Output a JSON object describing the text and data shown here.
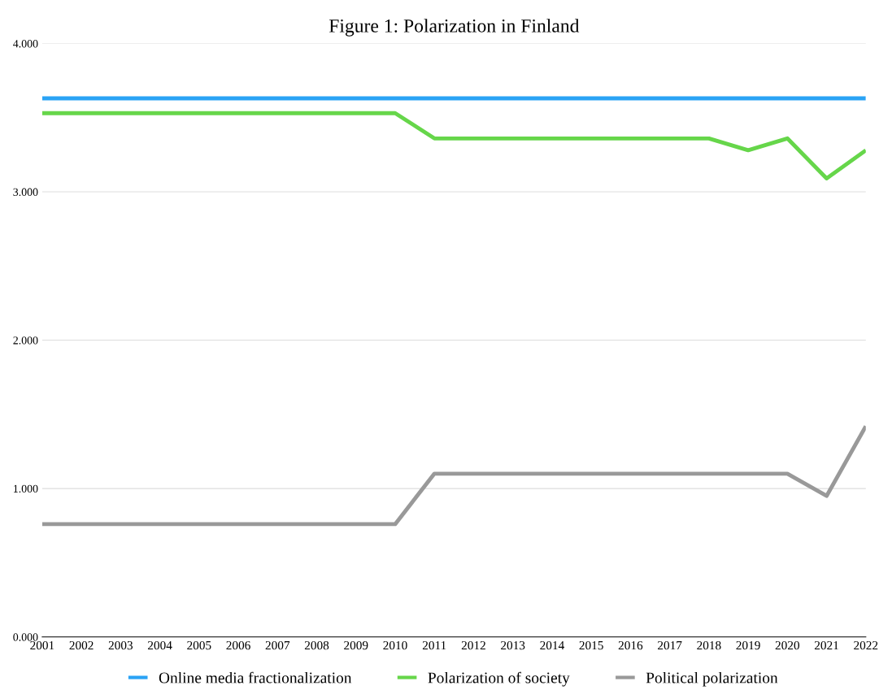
{
  "chart_data": {
    "type": "line",
    "title": "Figure 1: Polarization in Finland",
    "categories": [
      "2001",
      "2002",
      "2003",
      "2004",
      "2005",
      "2006",
      "2007",
      "2008",
      "2009",
      "2010",
      "2011",
      "2012",
      "2013",
      "2014",
      "2015",
      "2016",
      "2017",
      "2018",
      "2019",
      "2020",
      "2021",
      "2022"
    ],
    "series": [
      {
        "name": "Online media fractionalization",
        "color": "#2aa3f5",
        "values": [
          3.63,
          3.63,
          3.63,
          3.63,
          3.63,
          3.63,
          3.63,
          3.63,
          3.63,
          3.63,
          3.63,
          3.63,
          3.63,
          3.63,
          3.63,
          3.63,
          3.63,
          3.63,
          3.63,
          3.63,
          3.63,
          3.63
        ]
      },
      {
        "name": "Polarization of society",
        "color": "#66d64a",
        "values": [
          3.53,
          3.53,
          3.53,
          3.53,
          3.53,
          3.53,
          3.53,
          3.53,
          3.53,
          3.53,
          3.36,
          3.36,
          3.36,
          3.36,
          3.36,
          3.36,
          3.36,
          3.36,
          3.28,
          3.36,
          3.09,
          3.28
        ]
      },
      {
        "name": "Political polarization",
        "color": "#999999",
        "values": [
          0.76,
          0.76,
          0.76,
          0.76,
          0.76,
          0.76,
          0.76,
          0.76,
          0.76,
          0.76,
          1.1,
          1.1,
          1.1,
          1.1,
          1.1,
          1.1,
          1.1,
          1.1,
          1.1,
          1.1,
          0.95,
          1.42
        ]
      }
    ],
    "ylim": [
      0,
      4
    ],
    "yticks": [
      {
        "value": 0,
        "label": "0.000"
      },
      {
        "value": 1,
        "label": "1.000"
      },
      {
        "value": 2,
        "label": "2.000"
      },
      {
        "value": 3,
        "label": "3.000"
      },
      {
        "value": 4,
        "label": "4.000"
      }
    ],
    "grid": "y",
    "legend": "bottom",
    "marker": "none",
    "line_style": "solid"
  }
}
